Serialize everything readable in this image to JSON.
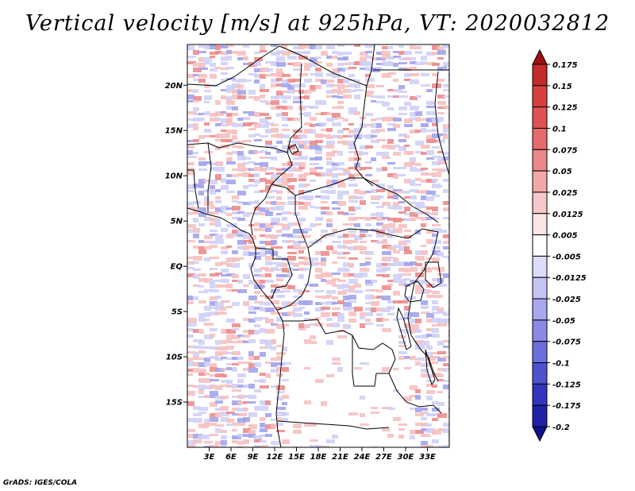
{
  "title": "Vertical velocity [m/s] at 925hPa, VT: 2020032812",
  "credit": "GrADS: IGES/COLA",
  "lat_labels": [
    "20N",
    "15N",
    "10N",
    "5N",
    "EQ",
    "5S",
    "10S",
    "15S"
  ],
  "lon_labels": [
    "3E",
    "6E",
    "9E",
    "12E",
    "15E",
    "18E",
    "21E",
    "24E",
    "27E",
    "30E",
    "33E"
  ],
  "colorbar": {
    "levels": [
      "0.175",
      "0.15",
      "0.125",
      "0.1",
      "0.075",
      "0.05",
      "0.025",
      "0.0125",
      "0.005",
      "-0.005",
      "-0.0125",
      "-0.025",
      "-0.05",
      "-0.075",
      "-0.1",
      "-0.125",
      "-0.175",
      "-0.2"
    ],
    "colors": [
      "#a01010",
      "#c42a2a",
      "#d84040",
      "#e05252",
      "#e66a6a",
      "#ec8888",
      "#f3a8a8",
      "#f7c8c8",
      "#fbe4e4",
      "#ffffff",
      "#dcdcf8",
      "#c4c4f4",
      "#a8a8ee",
      "#8a8ae6",
      "#6e6ede",
      "#5050d0",
      "#3434c0",
      "#2020a8",
      "#10108a"
    ]
  },
  "palette": {
    "red_light": "#f6c0c0",
    "red_mid": "#ec8c8c",
    "blue_light": "#cfd0f6",
    "blue_mid": "#a2a4ec",
    "border": "#000000"
  }
}
